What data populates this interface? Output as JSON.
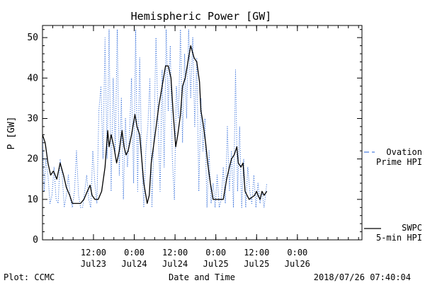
{
  "chart_data": {
    "type": "line",
    "title": "Hemispheric Power [GW]",
    "ylabel": "P [GW]",
    "xlabel": "Date and Time",
    "ylim": [
      0,
      53
    ],
    "yticks": [
      0,
      10,
      20,
      30,
      40,
      50
    ],
    "xlim": [
      0,
      94
    ],
    "x_unit_note": "hours after 2018/07/22 21:00 UT",
    "xticks": [
      {
        "x": 15,
        "time": "12:00",
        "date": "Jul23"
      },
      {
        "x": 27,
        "time": "0:00",
        "date": "Jul24"
      },
      {
        "x": 39,
        "time": "12:00",
        "date": "Jul24"
      },
      {
        "x": 51,
        "time": "0:00",
        "date": "Jul25"
      },
      {
        "x": 63,
        "time": "12:00",
        "date": "Jul25"
      },
      {
        "x": 75,
        "time": "0:00",
        "date": "Jul26"
      }
    ],
    "series": [
      {
        "name": "SWPC 5-min HPI",
        "color": "#000000",
        "style": "solid",
        "points": [
          [
            0,
            26
          ],
          [
            0.8,
            24
          ],
          [
            1.6,
            19
          ],
          [
            2.4,
            16
          ],
          [
            3.2,
            17
          ],
          [
            4.2,
            15
          ],
          [
            5.2,
            19
          ],
          [
            6.2,
            16
          ],
          [
            7,
            13
          ],
          [
            8,
            11
          ],
          [
            8.8,
            9
          ],
          [
            10,
            9
          ],
          [
            11.2,
            9
          ],
          [
            12.2,
            10
          ],
          [
            13.2,
            12
          ],
          [
            14,
            13.5
          ],
          [
            14.6,
            11
          ],
          [
            15.4,
            10
          ],
          [
            16.4,
            10
          ],
          [
            17.4,
            12
          ],
          [
            18.4,
            18
          ],
          [
            19.2,
            27
          ],
          [
            19.6,
            23
          ],
          [
            20.2,
            26
          ],
          [
            21,
            23
          ],
          [
            21.8,
            19
          ],
          [
            22.6,
            22
          ],
          [
            23.4,
            27
          ],
          [
            24,
            23
          ],
          [
            24.6,
            21
          ],
          [
            25.2,
            22
          ],
          [
            26.2,
            26
          ],
          [
            27.2,
            31
          ],
          [
            27.8,
            28
          ],
          [
            28.6,
            26
          ],
          [
            29.2,
            20
          ],
          [
            29.8,
            14
          ],
          [
            30.8,
            9
          ],
          [
            31.4,
            11
          ],
          [
            32,
            19
          ],
          [
            32.8,
            24
          ],
          [
            33.6,
            29
          ],
          [
            34.2,
            33
          ],
          [
            35.2,
            38
          ],
          [
            36.2,
            43
          ],
          [
            37,
            43
          ],
          [
            37.8,
            40
          ],
          [
            38.4,
            32
          ],
          [
            39.2,
            23
          ],
          [
            39.8,
            26
          ],
          [
            40.6,
            31
          ],
          [
            41.2,
            38
          ],
          [
            42,
            40
          ],
          [
            42.8,
            44
          ],
          [
            43.6,
            48
          ],
          [
            44.6,
            45
          ],
          [
            45.4,
            44
          ],
          [
            46.2,
            39
          ],
          [
            46.6,
            32
          ],
          [
            47.2,
            29
          ],
          [
            48,
            24
          ],
          [
            48.6,
            19
          ],
          [
            49.4,
            14
          ],
          [
            50.2,
            10
          ],
          [
            51.2,
            10
          ],
          [
            52.2,
            10
          ],
          [
            53.2,
            10
          ],
          [
            54.2,
            15
          ],
          [
            55,
            18
          ],
          [
            55.6,
            20
          ],
          [
            56.4,
            21
          ],
          [
            57.2,
            23
          ],
          [
            57.6,
            19
          ],
          [
            58.4,
            18
          ],
          [
            59,
            19
          ],
          [
            59.6,
            12
          ],
          [
            60.2,
            11
          ],
          [
            60.8,
            10
          ],
          [
            61.6,
            10.5
          ],
          [
            62.4,
            11
          ],
          [
            63,
            12
          ],
          [
            63.4,
            11
          ],
          [
            64,
            10
          ],
          [
            64.6,
            12
          ],
          [
            65.2,
            11
          ],
          [
            66,
            12
          ]
        ]
      },
      {
        "name": "Ovation Prime HPI",
        "color": "#1f5fd6",
        "style": "dotted",
        "points": [
          [
            0,
            25
          ],
          [
            0.5,
            12
          ],
          [
            1,
            20
          ],
          [
            1.6,
            16
          ],
          [
            2.2,
            9
          ],
          [
            2.8,
            11
          ],
          [
            3.4,
            18
          ],
          [
            4,
            10
          ],
          [
            4.6,
            9
          ],
          [
            5.2,
            20
          ],
          [
            5.8,
            16
          ],
          [
            6.4,
            8
          ],
          [
            7,
            11
          ],
          [
            7.6,
            16
          ],
          [
            8.2,
            10
          ],
          [
            8.8,
            8
          ],
          [
            9.4,
            12
          ],
          [
            10,
            22
          ],
          [
            10.6,
            11
          ],
          [
            11.2,
            8
          ],
          [
            11.8,
            8
          ],
          [
            12.4,
            12
          ],
          [
            13,
            16
          ],
          [
            13.6,
            10
          ],
          [
            14.2,
            8
          ],
          [
            14.8,
            22
          ],
          [
            15.4,
            14
          ],
          [
            16,
            9
          ],
          [
            16.6,
            32
          ],
          [
            17.2,
            38
          ],
          [
            17.8,
            20
          ],
          [
            18.4,
            50
          ],
          [
            19,
            20
          ],
          [
            19.6,
            52
          ],
          [
            20.2,
            12
          ],
          [
            20.8,
            40
          ],
          [
            21.4,
            22
          ],
          [
            22,
            52
          ],
          [
            22.6,
            16
          ],
          [
            23.2,
            35
          ],
          [
            23.8,
            10
          ],
          [
            24.4,
            30
          ],
          [
            25,
            18
          ],
          [
            25.6,
            26
          ],
          [
            26.2,
            40
          ],
          [
            26.8,
            14
          ],
          [
            27.4,
            52
          ],
          [
            28,
            12
          ],
          [
            28.6,
            45
          ],
          [
            29.2,
            20
          ],
          [
            29.8,
            8
          ],
          [
            30.4,
            22
          ],
          [
            31,
            28
          ],
          [
            31.6,
            40
          ],
          [
            32.2,
            8
          ],
          [
            32.8,
            26
          ],
          [
            33.4,
            50
          ],
          [
            34,
            30
          ],
          [
            34.6,
            12
          ],
          [
            35.2,
            42
          ],
          [
            35.8,
            18
          ],
          [
            36.4,
            52
          ],
          [
            37,
            32
          ],
          [
            37.6,
            48
          ],
          [
            38.2,
            20
          ],
          [
            38.8,
            10
          ],
          [
            39.4,
            38
          ],
          [
            40,
            30
          ],
          [
            40.6,
            52
          ],
          [
            41.2,
            24
          ],
          [
            41.8,
            46
          ],
          [
            42.4,
            30
          ],
          [
            43,
            52
          ],
          [
            43.6,
            35
          ],
          [
            44.2,
            50
          ],
          [
            44.8,
            28
          ],
          [
            45.4,
            45
          ],
          [
            46,
            12
          ],
          [
            46.6,
            35
          ],
          [
            47.2,
            22
          ],
          [
            47.8,
            30
          ],
          [
            48.4,
            8
          ],
          [
            49,
            22
          ],
          [
            49.6,
            9
          ],
          [
            50.2,
            14
          ],
          [
            50.8,
            8
          ],
          [
            51.4,
            16
          ],
          [
            52,
            8
          ],
          [
            52.6,
            10
          ],
          [
            53.2,
            18
          ],
          [
            53.8,
            9
          ],
          [
            54.4,
            28
          ],
          [
            55,
            12
          ],
          [
            55.6,
            22
          ],
          [
            56.2,
            8
          ],
          [
            56.8,
            42
          ],
          [
            57.4,
            12
          ],
          [
            58,
            28
          ],
          [
            58.6,
            8
          ],
          [
            59.2,
            20
          ],
          [
            59.8,
            8
          ],
          [
            60.4,
            18
          ],
          [
            61,
            12
          ],
          [
            61.6,
            9
          ],
          [
            62.2,
            16
          ],
          [
            62.8,
            8
          ],
          [
            63.4,
            14
          ],
          [
            64,
            9
          ],
          [
            64.6,
            12
          ],
          [
            65.2,
            8
          ],
          [
            66,
            14
          ]
        ]
      }
    ],
    "legend": [
      {
        "series": "Ovation Prime HPI",
        "lines": [
          "Ovation",
          "Prime HPI"
        ]
      },
      {
        "series": "SWPC 5-min HPI",
        "lines": [
          "SWPC",
          "5-min HPI"
        ]
      }
    ],
    "legend_placement": "right"
  },
  "footer": {
    "credit": "Plot: CCMC",
    "timestamp": "2018/07/26 07:40:04"
  }
}
